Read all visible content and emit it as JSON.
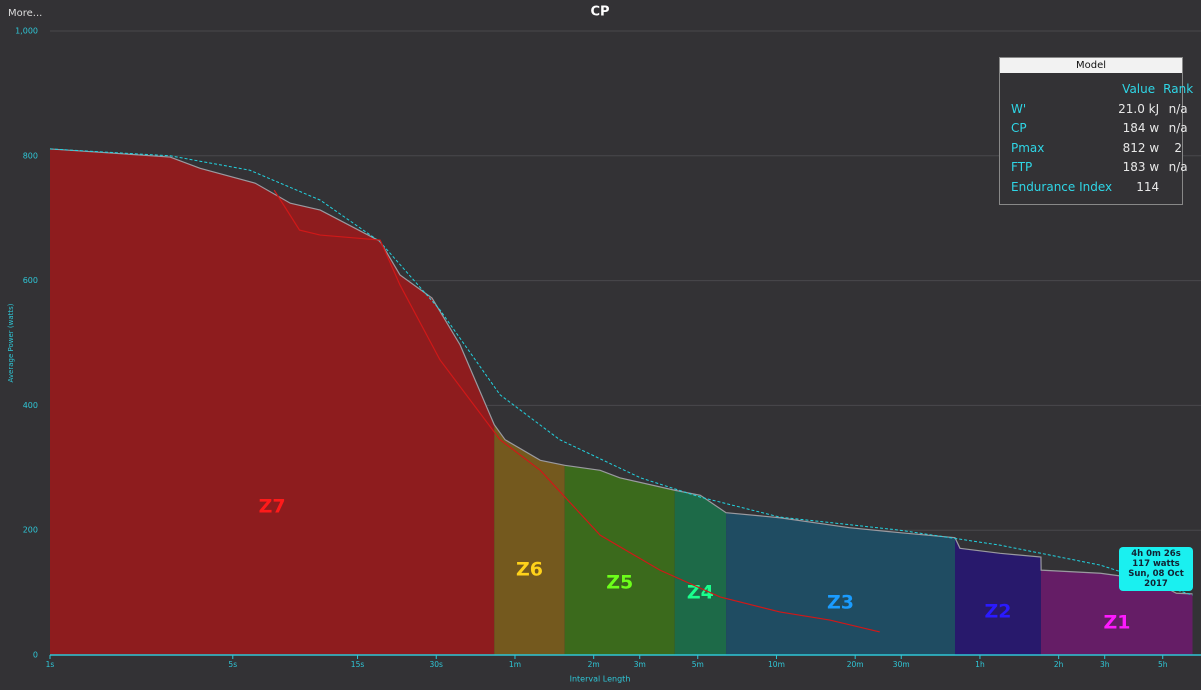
{
  "more_button": "More...",
  "chart_data": {
    "type": "cp",
    "title": "CP",
    "x_label": "Interval Length",
    "y_label": "Average Power (watts)",
    "xlog": true,
    "xlim": [
      1,
      23500
    ],
    "ylim": [
      0,
      1000
    ],
    "grid": true,
    "xticks": [
      {
        "value": 1,
        "label": "1s"
      },
      {
        "value": 5,
        "label": "5s"
      },
      {
        "value": 15,
        "label": "15s"
      },
      {
        "value": 30,
        "label": "30s"
      },
      {
        "value": 60,
        "label": "1m"
      },
      {
        "value": 120,
        "label": "2m"
      },
      {
        "value": 180,
        "label": "3m"
      },
      {
        "value": 300,
        "label": "5m"
      },
      {
        "value": 600,
        "label": "10m"
      },
      {
        "value": 1200,
        "label": "20m"
      },
      {
        "value": 1800,
        "label": "30m"
      },
      {
        "value": 3600,
        "label": "1h"
      },
      {
        "value": 7200,
        "label": "2h"
      },
      {
        "value": 10800,
        "label": "3h"
      },
      {
        "value": 18000,
        "label": "5h"
      }
    ],
    "yticks": [
      0,
      200,
      400,
      600,
      800,
      {
        "value": 1000,
        "label": "1,000"
      }
    ],
    "series": [
      {
        "color": "#9a9aa0",
        "style": "solid",
        "x": [
          1,
          2.88,
          3.75,
          6.1,
          8.3,
          10.8,
          18.3,
          21.8,
          28.9,
          37,
          50,
          55,
          75,
          93,
          127,
          151,
          245,
          307,
          385,
          618,
          1140,
          1780,
          2890,
          3020,
          4300,
          6160,
          6170,
          10400,
          16300,
          20300,
          23400
        ],
        "values": [
          811,
          798,
          780,
          756,
          724,
          713,
          663,
          609,
          572,
          497,
          369,
          345,
          312,
          304,
          296,
          284,
          264,
          256,
          228,
          220,
          204,
          196,
          188,
          171,
          163,
          157,
          136,
          131,
          120,
          99,
          98
        ]
      },
      {
        "color": "#22d3e0",
        "style": "dashed",
        "x": [
          1,
          2.88,
          5.8,
          10.8,
          18.3,
          31,
          52.6,
          89,
          181,
          307,
          618,
          1780,
          4300,
          10400,
          23400
        ],
        "values": [
          811,
          800,
          777,
          729,
          662,
          553,
          417,
          345,
          284,
          253,
          221,
          200,
          176,
          144,
          96
        ]
      },
      {
        "color": "#d01818",
        "style": "solid",
        "x": [
          7.2,
          9.0,
          10.8,
          18.3,
          21.8,
          31,
          52.6,
          75,
          127,
          215,
          365,
          618,
          960,
          1490
        ],
        "values": [
          745,
          681,
          673,
          665,
          593,
          473,
          345,
          296,
          192,
          136,
          93,
          69,
          56,
          37
        ]
      }
    ],
    "zones": [
      {
        "name": "Z7",
        "from": 1,
        "to": 50,
        "color": "#8e1c1e",
        "label_color": "#ff1a1a"
      },
      {
        "name": "Z6",
        "from": 50,
        "to": 93,
        "color": "#74591e",
        "label_color": "#ffd21a"
      },
      {
        "name": "Z5",
        "from": 93,
        "to": 245,
        "color": "#3b6a1c",
        "label_color": "#6cff1a"
      },
      {
        "name": "Z4",
        "from": 245,
        "to": 385,
        "color": "#1d6a48",
        "label_color": "#1aff8c"
      },
      {
        "name": "Z3",
        "from": 385,
        "to": 2890,
        "color": "#1f4c62",
        "label_color": "#1a9cff"
      },
      {
        "name": "Z2",
        "from": 2890,
        "to": 6160,
        "color": "#28196c",
        "label_color": "#2a1aff"
      },
      {
        "name": "Z1",
        "from": 6160,
        "to": 23500,
        "color": "#651d66",
        "label_color": "#ff1aff"
      }
    ],
    "annotation": [
      "4h  0m 26s",
      "117 watts",
      "Sun, 08 Oct 2017"
    ]
  },
  "model_panel": {
    "title": "Model",
    "columns": [
      "Value",
      "Rank"
    ],
    "rows": [
      [
        "W'",
        "21.0 kJ",
        "n/a"
      ],
      [
        "CP",
        "184 w",
        "n/a"
      ],
      [
        "Pmax",
        "812 w",
        "2"
      ],
      [
        "FTP",
        "183 w",
        "n/a"
      ],
      [
        "Endurance Index",
        "114"
      ]
    ]
  }
}
